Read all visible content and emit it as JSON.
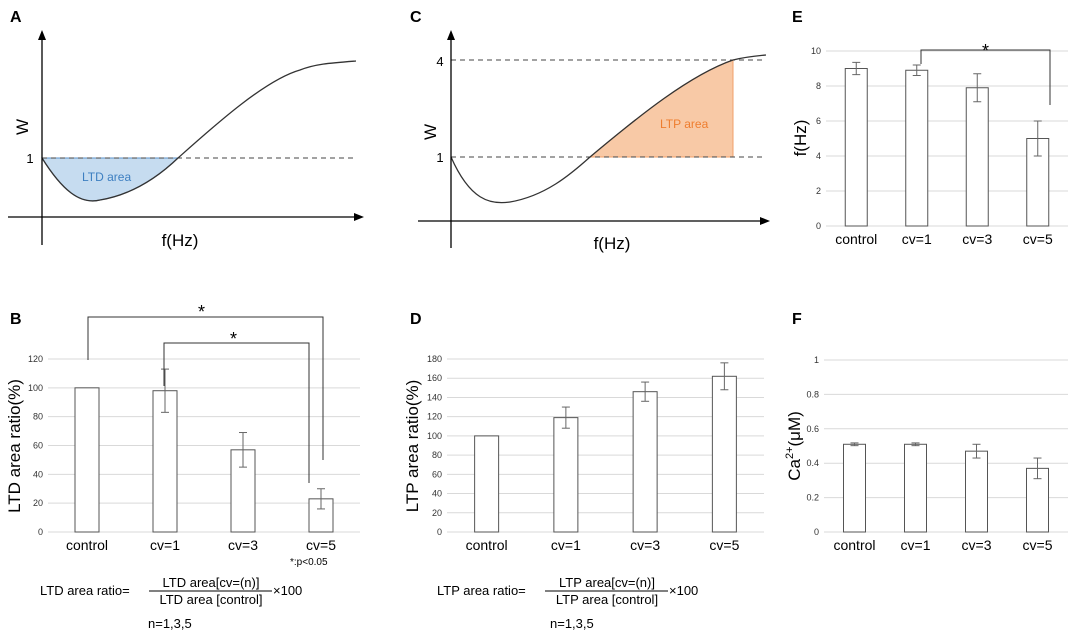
{
  "figure": {
    "panel_labels": [
      "A",
      "B",
      "C",
      "D",
      "E",
      "F"
    ]
  },
  "chart_data": [
    {
      "panel": "A",
      "type": "line",
      "title": "",
      "xlabel": "f(Hz)",
      "ylabel": "W",
      "y_ticks": [
        "1"
      ],
      "shaded_region_label": "LTD area",
      "shade_color": "#c6dcf0",
      "shade_edge_color": "#5b92c8",
      "label_color": "#3d7fc1"
    },
    {
      "panel": "B",
      "type": "bar",
      "categories": [
        "control",
        "cv=1",
        "cv=3",
        "cv=5"
      ],
      "values": [
        100,
        98,
        57,
        23
      ],
      "errors": [
        0,
        15,
        12,
        7
      ],
      "ylim": [
        0,
        120
      ],
      "yticks": [
        0,
        20,
        40,
        60,
        80,
        100,
        120
      ],
      "ylabel": "LTD area ratio(%)",
      "significance": [
        {
          "from": "control",
          "to": "cv=5",
          "mark": "*"
        },
        {
          "from": "cv=1",
          "to": "cv=5",
          "mark": "*"
        }
      ],
      "note": "*:p<0.05",
      "formula": {
        "left": "LTD area ratio=",
        "numerator": "LTD area[cv=(n)]",
        "denominator": "LTD area [control]",
        "multiplier": "×100",
        "n_note": "n=1,3,5"
      }
    },
    {
      "panel": "C",
      "type": "line",
      "title": "",
      "xlabel": "f(Hz)",
      "ylabel": "W",
      "y_ticks": [
        "1",
        "4"
      ],
      "shaded_region_label": "LTP area",
      "shade_color": "#f8c9a6",
      "shade_edge_color": "#f0a06a",
      "label_color": "#ee7d2f"
    },
    {
      "panel": "D",
      "type": "bar",
      "categories": [
        "control",
        "cv=1",
        "cv=3",
        "cv=5"
      ],
      "values": [
        100,
        119,
        146,
        162
      ],
      "errors": [
        0,
        11,
        10,
        14
      ],
      "ylim": [
        0,
        180
      ],
      "yticks": [
        0,
        20,
        40,
        60,
        80,
        100,
        120,
        140,
        160,
        180
      ],
      "ylabel": "LTP area ratio(%)",
      "formula": {
        "left": "LTP area ratio=",
        "numerator": "LTP area[cv=(n)]",
        "denominator": "LTP area [control]",
        "multiplier": "×100",
        "n_note": "n=1,3,5"
      }
    },
    {
      "panel": "E",
      "type": "bar",
      "categories": [
        "control",
        "cv=1",
        "cv=3",
        "cv=5"
      ],
      "values": [
        9.0,
        8.9,
        7.9,
        5.0
      ],
      "errors": [
        0.35,
        0.3,
        0.8,
        1.0
      ],
      "ylim": [
        0,
        10
      ],
      "yticks": [
        0,
        2,
        4,
        6,
        8,
        10
      ],
      "ylabel": "f(Hz)",
      "significance": [
        {
          "from": "cv=1",
          "to": "cv=5",
          "mark": "*"
        }
      ]
    },
    {
      "panel": "F",
      "type": "bar",
      "categories": [
        "control",
        "cv=1",
        "cv=3",
        "cv=5"
      ],
      "values": [
        0.51,
        0.51,
        0.47,
        0.37
      ],
      "errors": [
        0.008,
        0.008,
        0.04,
        0.06
      ],
      "ylim": [
        0,
        1
      ],
      "yticks": [
        "0",
        "0.2",
        "0.4",
        "0.6",
        "0.8",
        "1"
      ],
      "ylabel_main": "Ca",
      "ylabel_sup": "2+",
      "ylabel_unit": "(μM)"
    }
  ]
}
